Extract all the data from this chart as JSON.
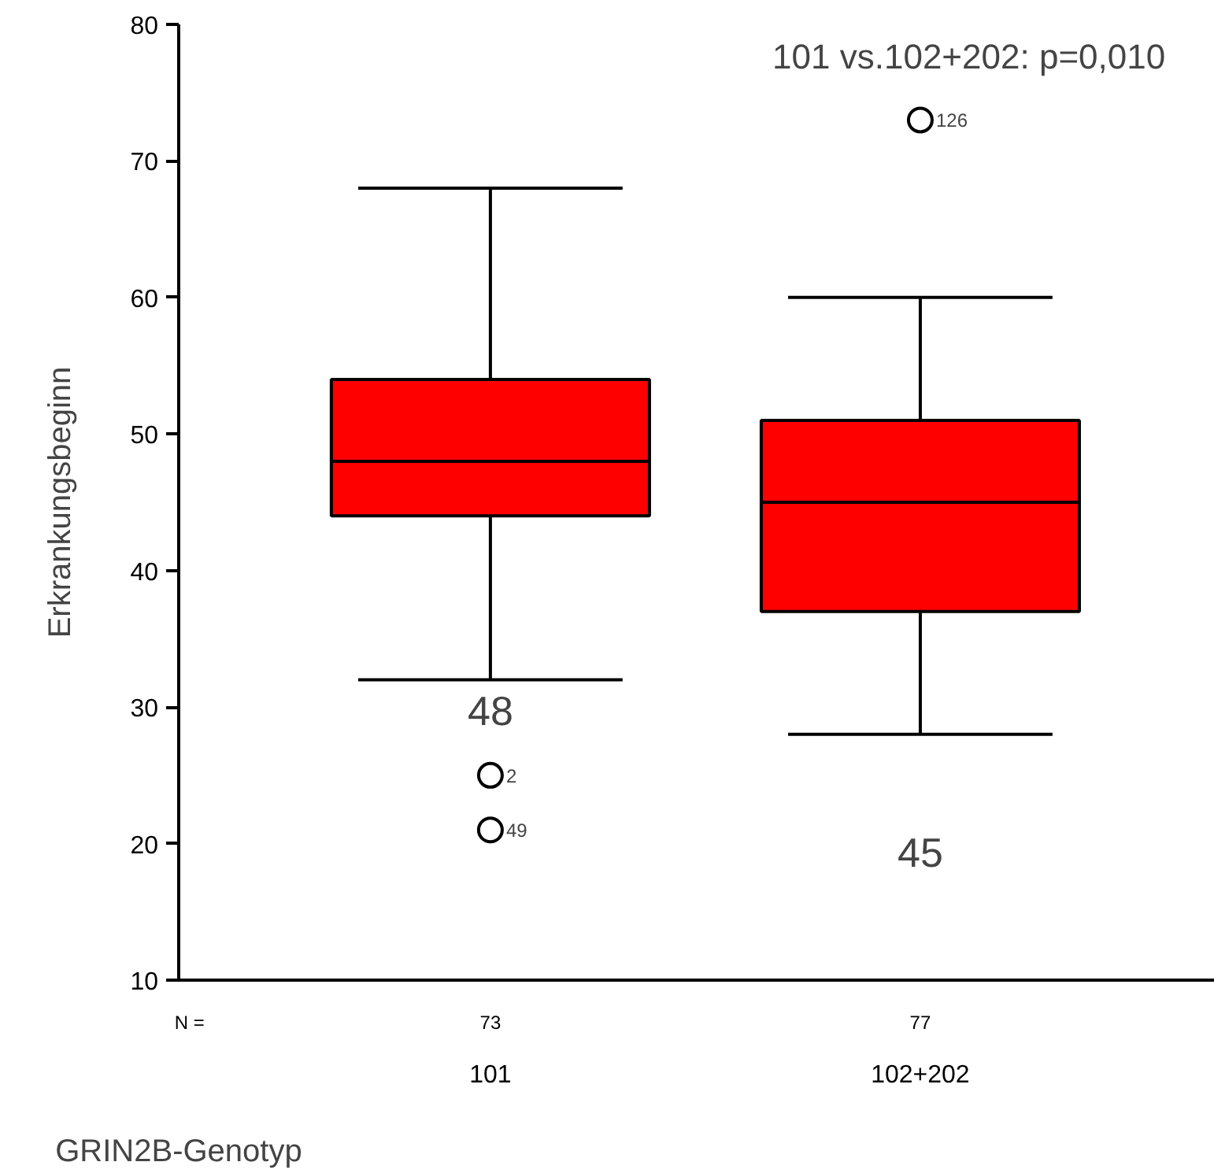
{
  "chart_data": {
    "type": "box",
    "title": "101 vs.102+202: p=0,010",
    "ylabel": "Erkrankungsbeginn",
    "xlabel": "GRIN2B-Genotyp",
    "categories": [
      "101",
      "102+202"
    ],
    "series": [
      {
        "color": "#ff0000",
        "boxes": [
          {
            "low": 32,
            "q1": 44,
            "median": 48,
            "q3": 54,
            "high": 68,
            "outliers": [
              25,
              21
            ]
          },
          {
            "low": 28,
            "q1": 37,
            "median": 45,
            "q3": 51,
            "high": 60,
            "outliers": [
              73
            ]
          }
        ]
      }
    ],
    "ylim": [
      10,
      80
    ],
    "yticks": [
      10,
      20,
      30,
      40,
      50,
      60,
      70,
      80
    ],
    "marker": "circle",
    "annotations": [
      "N =",
      "73",
      "77",
      "48",
      "45",
      "2",
      "49",
      "126"
    ]
  }
}
